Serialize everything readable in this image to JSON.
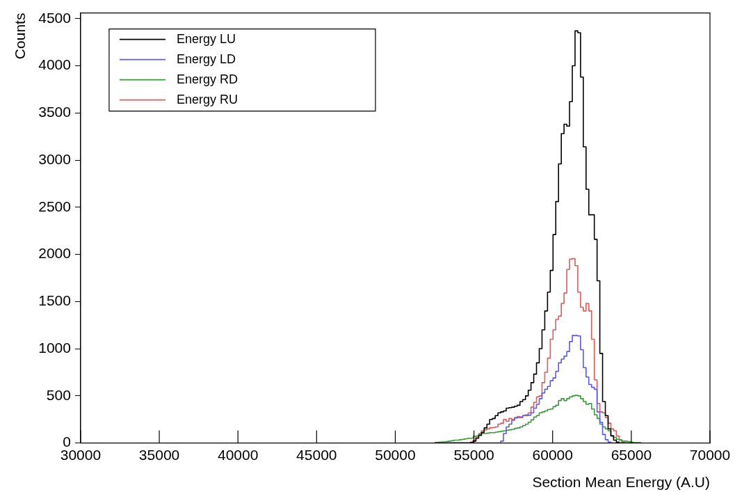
{
  "chart_data": {
    "type": "histogram",
    "xlabel": "Section Mean Energy (A.U)",
    "ylabel": "Counts",
    "bins": [
      52500,
      52675,
      52850,
      53025,
      53200,
      53375,
      53550,
      53725,
      53900,
      54075,
      54250,
      54425,
      54600,
      54775,
      54950,
      55125,
      55300,
      55475,
      55650,
      55825,
      56000,
      56175,
      56350,
      56525,
      56700,
      56875,
      57050,
      57225,
      57400,
      57575,
      57750,
      57925,
      58100,
      58275,
      58450,
      58625,
      58800,
      58975,
      59150,
      59325,
      59500,
      59675,
      59850,
      60025,
      60200,
      60375,
      60550,
      60725,
      60900,
      61075,
      61250,
      61425,
      61600,
      61775,
      61950,
      62125,
      62300,
      62475,
      62650,
      62825,
      63000,
      63175,
      63350,
      63525,
      63700,
      63875,
      64050,
      64225,
      64400,
      64575,
      64750,
      64925,
      65100,
      65275,
      65450,
      65625
    ],
    "series": [
      {
        "name": "Energy LU",
        "color": "#000000",
        "values": [
          0,
          0,
          0,
          0,
          0,
          0,
          0,
          0,
          0,
          0,
          0,
          0,
          0,
          5,
          20,
          50,
          80,
          112,
          160,
          200,
          250,
          260,
          290,
          320,
          330,
          340,
          370,
          375,
          380,
          390,
          400,
          440,
          460,
          500,
          560,
          640,
          730,
          850,
          1000,
          1200,
          1400,
          1600,
          1830,
          2210,
          2560,
          2960,
          3280,
          3380,
          3360,
          3620,
          4000,
          4370,
          4350,
          3880,
          3140,
          2690,
          2420,
          2420,
          2160,
          1720,
          950,
          440,
          290,
          150,
          75,
          30,
          10,
          0,
          0,
          0,
          0,
          0,
          0,
          0,
          0
        ]
      },
      {
        "name": "Energy LD",
        "color": "#5a5af0",
        "values": [
          0,
          0,
          0,
          0,
          0,
          0,
          0,
          0,
          0,
          0,
          0,
          0,
          0,
          0,
          0,
          0,
          0,
          0,
          0,
          0,
          0,
          0,
          0,
          0,
          20,
          100,
          170,
          200,
          240,
          265,
          270,
          275,
          290,
          290,
          295,
          320,
          370,
          410,
          470,
          530,
          570,
          600,
          660,
          690,
          760,
          850,
          890,
          920,
          970,
          1075,
          1140,
          1140,
          1135,
          990,
          800,
          700,
          620,
          590,
          570,
          330,
          220,
          90,
          35,
          10,
          0,
          0,
          0,
          0,
          0,
          0,
          0,
          0,
          0,
          0,
          0
        ]
      },
      {
        "name": "Energy RD",
        "color": "#3a9a3a",
        "values": [
          5,
          8,
          10,
          12,
          15,
          20,
          25,
          30,
          30,
          35,
          40,
          45,
          50,
          50,
          70,
          75,
          90,
          100,
          100,
          105,
          110,
          110,
          115,
          120,
          125,
          130,
          135,
          140,
          145,
          155,
          160,
          170,
          185,
          200,
          220,
          245,
          275,
          290,
          320,
          330,
          340,
          355,
          360,
          385,
          400,
          450,
          470,
          450,
          470,
          490,
          500,
          505,
          500,
          470,
          440,
          410,
          420,
          360,
          300,
          260,
          200,
          170,
          150,
          130,
          80,
          60,
          40,
          30,
          20,
          20,
          15,
          10,
          0,
          0,
          0
        ]
      },
      {
        "name": "Energy RU",
        "color": "#e05a5a",
        "values": [
          0,
          0,
          0,
          0,
          0,
          0,
          0,
          0,
          0,
          0,
          0,
          0,
          0,
          10,
          30,
          60,
          100,
          130,
          140,
          150,
          160,
          165,
          170,
          200,
          210,
          250,
          230,
          260,
          250,
          270,
          280,
          270,
          290,
          300,
          320,
          380,
          430,
          490,
          500,
          640,
          750,
          900,
          1100,
          1200,
          1310,
          1345,
          1480,
          1590,
          1840,
          1950,
          1955,
          1880,
          1600,
          1440,
          1400,
          1480,
          1400,
          1100,
          670,
          420,
          330,
          320,
          270,
          210,
          150,
          130,
          75,
          35,
          10,
          0,
          0,
          0,
          0,
          0,
          0
        ]
      }
    ],
    "xlim": [
      30000,
      70000
    ],
    "ylim": [
      0,
      4560
    ],
    "xticks": [
      30000,
      35000,
      40000,
      45000,
      50000,
      55000,
      60000,
      65000,
      70000
    ],
    "yticks": [
      0,
      500,
      1000,
      1500,
      2000,
      2500,
      3000,
      3500,
      4000,
      4500
    ],
    "legend": "top left"
  }
}
